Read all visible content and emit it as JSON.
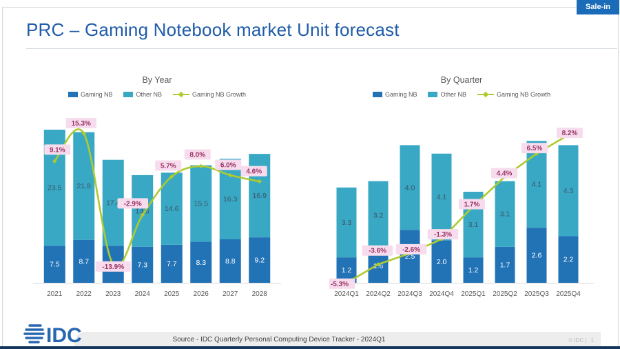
{
  "badge": {
    "label": "Sale-in"
  },
  "title": "PRC – Gaming Notebook market Unit forecast",
  "chart_data": [
    {
      "type": "bar",
      "subtype": "stacked-bars-with-growth-line",
      "title": "By Year",
      "categories": [
        "2021",
        "2022",
        "2023",
        "2024",
        "2025",
        "2026",
        "2027",
        "2028"
      ],
      "series": [
        {
          "name": "Gaming NB",
          "color": "#2272B6",
          "values": [
            7.5,
            8.7,
            7.5,
            7.3,
            7.7,
            8.3,
            8.8,
            9.2
          ],
          "value_labels": [
            "7.5",
            "8.7",
            "",
            "7.3",
            "7.7",
            "8.3",
            "8.8",
            "9.2"
          ]
        },
        {
          "name": "Other NB",
          "color": "#38A8C5",
          "values": [
            23.5,
            21.8,
            17.4,
            14.5,
            14.6,
            15.5,
            16.3,
            16.9
          ],
          "value_labels": [
            "23.5",
            "21.8",
            "17.4",
            "14.5",
            "14.6",
            "15.5",
            "16.3",
            "16.9"
          ]
        }
      ],
      "line": {
        "name": "Gaming NB Growth",
        "color": "#AFCA2F",
        "values_pct": [
          9.1,
          15.3,
          -13.9,
          -2.9,
          5.7,
          8.0,
          6.0,
          4.6
        ],
        "labels": [
          "9.1%",
          "15.3%",
          "-13.9%",
          "-2.9%",
          "5.7%",
          "8.0%",
          "6.0%",
          "4.6%"
        ]
      },
      "legend_position": "top",
      "grid": false,
      "y_axis_visible": false
    },
    {
      "type": "bar",
      "subtype": "stacked-bars-with-growth-line",
      "title": "By Quarter",
      "categories": [
        "2024Q1",
        "2024Q2",
        "2024Q3",
        "2024Q4",
        "2025Q1",
        "2025Q2",
        "2025Q3",
        "2025Q4"
      ],
      "series": [
        {
          "name": "Gaming NB",
          "color": "#2272B6",
          "values": [
            1.2,
            1.6,
            2.5,
            2.0,
            1.2,
            1.7,
            2.6,
            2.2
          ],
          "value_labels": [
            "1.2",
            "1.6",
            "2.5",
            "2.0",
            "1.2",
            "1.7",
            "2.6",
            "2.2"
          ]
        },
        {
          "name": "Other NB",
          "color": "#38A8C5",
          "values": [
            3.3,
            3.2,
            4.0,
            4.1,
            3.1,
            3.1,
            4.1,
            4.3
          ],
          "value_labels": [
            "3.3",
            "3.2",
            "4.0",
            "4.1",
            "3.1",
            "3.1",
            "4.1",
            "4.3"
          ]
        }
      ],
      "line": {
        "name": "Gaming NB Growth",
        "color": "#AFCA2F",
        "values_pct": [
          -5.3,
          -3.6,
          -2.6,
          -1.3,
          1.7,
          4.4,
          6.5,
          8.2
        ],
        "labels": [
          "-5.3%",
          "-3.6%",
          "-2.6%",
          "-1.3%",
          "1.7%",
          "4.4%",
          "6.5%",
          "8.2%"
        ]
      },
      "legend_position": "top",
      "grid": false,
      "y_axis_visible": false
    }
  ],
  "footer": {
    "source": "Source - IDC Quarterly Personal Computing Device Tracker - 2024Q1",
    "copyright": "© IDC |",
    "page_number": "1",
    "logo": "IDC"
  },
  "colors": {
    "title_blue": "#1F5CA9",
    "badge_bg": "#1A6CB8",
    "gaming_nb": "#2272B6",
    "other_nb": "#38A8C5",
    "growth_line": "#AFCA2F",
    "growth_label_bg": "#F6DCEC",
    "growth_label_text": "#9B3164",
    "axis_text": "#595959",
    "other_label_text": "#3F5565",
    "bottom_strip": "#17365D"
  }
}
